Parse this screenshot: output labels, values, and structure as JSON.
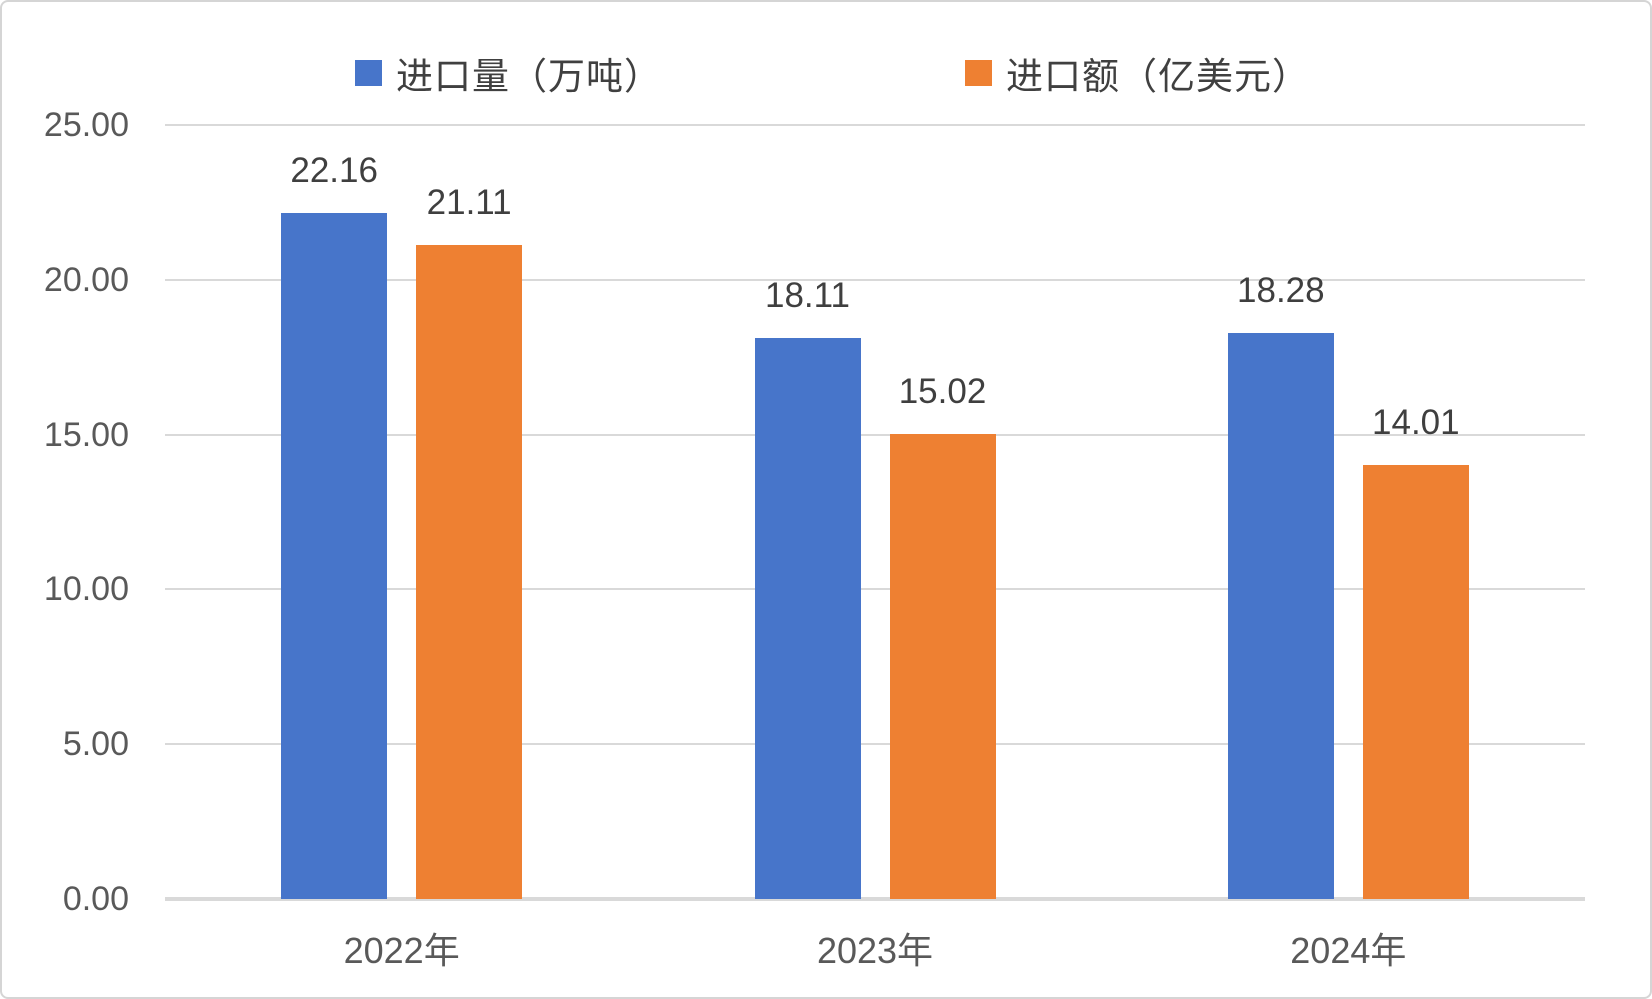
{
  "chart_data": {
    "type": "bar",
    "categories": [
      "2022年",
      "2023年",
      "2024年"
    ],
    "series": [
      {
        "name": "进口量（万吨）",
        "color": "#4775CA",
        "values": [
          22.16,
          18.11,
          18.28
        ]
      },
      {
        "name": "进口额（亿美元）",
        "color": "#EE8032",
        "values": [
          21.11,
          15.02,
          14.01
        ]
      }
    ],
    "title": "",
    "xlabel": "",
    "ylabel": "",
    "ylim": [
      0,
      25
    ],
    "ytick_step": 5,
    "yticks": [
      "25.00",
      "20.00",
      "15.00",
      "10.00",
      "5.00",
      "0.00"
    ],
    "value_label_format": "0.00",
    "grid": true,
    "legend_position": "top",
    "colors": {
      "gridline": "#d9d9d9",
      "axis_label": "#595959",
      "data_label": "#3f3f3f",
      "legend_label": "#404040",
      "background": "#ffffff",
      "frame_border": "#d5d5d5"
    }
  }
}
